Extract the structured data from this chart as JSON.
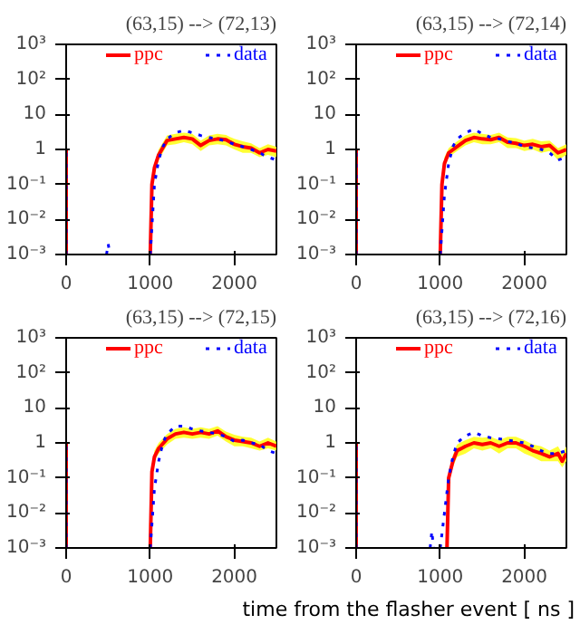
{
  "chart_data": [
    {
      "type": "line",
      "title": "(63,15) --> (72,13)",
      "ylim": [
        0.001,
        1000
      ],
      "xlim": [
        0,
        2500
      ],
      "log": "y",
      "legend": "top",
      "grid": false,
      "xticks": [
        0,
        1000,
        2000
      ],
      "yticks": [
        {
          "value": 0.001,
          "label": "10⁻³"
        },
        {
          "value": 0.01,
          "label": "10⁻²"
        },
        {
          "value": 0.1,
          "label": "10⁻¹"
        },
        1,
        10,
        {
          "value": 100,
          "label": "10²"
        },
        {
          "value": 1000,
          "label": "10³"
        }
      ],
      "series": [
        {
          "name": "ppc",
          "color": "#ff0000",
          "line_style": "solid",
          "x": [
            0,
            0,
            20,
            1000,
            1020,
            1050,
            1100,
            1200,
            1300,
            1400,
            1500,
            1600,
            1700,
            1800,
            1900,
            2000,
            2100,
            2200,
            2300,
            2400,
            2500
          ],
          "values": [
            0.001,
            1,
            null,
            0.001,
            0.1,
            0.3,
            0.7,
            1.8,
            2,
            2.2,
            2,
            1.3,
            1.8,
            2,
            1.9,
            1.4,
            1.2,
            1.1,
            0.8,
            1,
            0.9
          ],
          "lower": [
            null,
            null,
            null,
            null,
            0.07,
            0.2,
            0.5,
            1.3,
            1.4,
            1.6,
            1.4,
            0.9,
            1.3,
            1.4,
            1.3,
            1,
            0.8,
            0.8,
            0.6,
            0.7,
            0.6
          ],
          "upper": [
            null,
            null,
            null,
            null,
            0.14,
            0.4,
            1,
            2.5,
            2.8,
            3,
            2.8,
            1.8,
            2.5,
            2.8,
            2.6,
            2,
            1.7,
            1.5,
            1.1,
            1.4,
            1.2
          ]
        },
        {
          "name": "data",
          "color": "#0000ff",
          "line_style": "dotted",
          "x": [
            0,
            0,
            20,
            480,
            500,
            520,
            540,
            1000,
            1050,
            1100,
            1150,
            1200,
            1300,
            1400,
            1500,
            1600,
            1700,
            1800,
            1900,
            2000,
            2100,
            2200,
            2300,
            2400,
            2500
          ],
          "values": [
            0.001,
            1,
            null,
            0.001,
            0.002,
            0.001,
            null,
            0.001,
            0.1,
            0.5,
            1.2,
            2,
            3,
            3.5,
            3,
            2.5,
            2.2,
            2,
            1.7,
            1.4,
            1.2,
            1,
            0.8,
            0.6,
            0.5
          ]
        }
      ]
    },
    {
      "type": "line",
      "title": "(63,15) --> (72,14)",
      "ylim": [
        0.001,
        1000
      ],
      "xlim": [
        0,
        2500
      ],
      "log": "y",
      "legend": "top",
      "grid": false,
      "xticks": [
        0,
        1000,
        2000
      ],
      "yticks": [
        {
          "value": 0.001,
          "label": "10⁻³"
        },
        {
          "value": 0.01,
          "label": "10⁻²"
        },
        {
          "value": 0.1,
          "label": "10⁻¹"
        },
        1,
        10,
        {
          "value": 100,
          "label": "10²"
        },
        {
          "value": 1000,
          "label": "10³"
        }
      ],
      "series": [
        {
          "name": "ppc",
          "color": "#ff0000",
          "line_style": "solid",
          "x": [
            0,
            0,
            20,
            1000,
            1020,
            1050,
            1100,
            1200,
            1300,
            1400,
            1500,
            1600,
            1700,
            1800,
            1900,
            2000,
            2100,
            2200,
            2300,
            2400,
            2500
          ],
          "values": [
            0.001,
            1,
            null,
            0.001,
            0.1,
            0.4,
            0.8,
            1.2,
            1.8,
            2.2,
            2,
            1.9,
            2.2,
            1.6,
            1.5,
            1.3,
            1.4,
            1.2,
            1.3,
            0.8,
            1
          ],
          "lower": [
            null,
            null,
            null,
            null,
            0.07,
            0.3,
            0.6,
            0.9,
            1.3,
            1.6,
            1.4,
            1.4,
            1.6,
            1.1,
            1.1,
            0.9,
            1,
            0.8,
            0.9,
            0.5,
            0.7
          ],
          "upper": [
            null,
            null,
            null,
            null,
            0.14,
            0.6,
            1.1,
            1.7,
            2.5,
            3,
            2.8,
            2.6,
            3,
            2.2,
            2.1,
            1.8,
            2,
            1.7,
            1.8,
            1.1,
            1.4
          ]
        },
        {
          "name": "data",
          "color": "#0000ff",
          "line_style": "dotted",
          "x": [
            0,
            0,
            20,
            1000,
            1050,
            1100,
            1150,
            1200,
            1300,
            1400,
            1500,
            1600,
            1700,
            1800,
            1900,
            2000,
            2100,
            2200,
            2300,
            2400,
            2500
          ],
          "values": [
            0.001,
            1,
            null,
            0.001,
            0.05,
            0.4,
            1.2,
            2,
            3,
            3.8,
            2.8,
            2.2,
            2,
            1.7,
            1.5,
            1.2,
            1.1,
            1,
            0.8,
            0.5,
            0.6
          ]
        }
      ]
    },
    {
      "type": "line",
      "title": "(63,15) --> (72,15)",
      "ylim": [
        0.001,
        1000
      ],
      "xlim": [
        0,
        2500
      ],
      "log": "y",
      "legend": "top",
      "grid": false,
      "xticks": [
        0,
        1000,
        2000
      ],
      "yticks": [
        {
          "value": 0.001,
          "label": "10⁻³"
        },
        {
          "value": 0.01,
          "label": "10⁻²"
        },
        {
          "value": 0.1,
          "label": "10⁻¹"
        },
        1,
        10,
        {
          "value": 100,
          "label": "10²"
        },
        {
          "value": 1000,
          "label": "10³"
        }
      ],
      "series": [
        {
          "name": "ppc",
          "color": "#ff0000",
          "line_style": "solid",
          "x": [
            0,
            0,
            20,
            1000,
            1020,
            1050,
            1100,
            1200,
            1300,
            1400,
            1500,
            1600,
            1700,
            1800,
            1900,
            2000,
            2100,
            2200,
            2300,
            2400,
            2500
          ],
          "values": [
            0.001,
            1,
            null,
            0.001,
            0.15,
            0.4,
            0.7,
            1.3,
            1.8,
            2,
            1.8,
            2,
            1.8,
            2.2,
            1.5,
            1.2,
            1.1,
            1,
            0.8,
            1,
            0.8
          ],
          "lower": [
            null,
            null,
            null,
            null,
            0.1,
            0.3,
            0.5,
            0.9,
            1.3,
            1.4,
            1.3,
            1.4,
            1.3,
            1.6,
            1.1,
            0.8,
            0.8,
            0.7,
            0.6,
            0.7,
            0.6
          ],
          "upper": [
            null,
            null,
            null,
            null,
            0.2,
            0.6,
            1,
            1.8,
            2.5,
            2.8,
            2.5,
            2.8,
            2.5,
            3,
            2.1,
            1.7,
            1.5,
            1.4,
            1.1,
            1.4,
            1.1
          ]
        },
        {
          "name": "data",
          "color": "#0000ff",
          "line_style": "dotted",
          "x": [
            0,
            0,
            20,
            1000,
            1050,
            1100,
            1150,
            1200,
            1300,
            1400,
            1500,
            1600,
            1700,
            1800,
            1900,
            2000,
            2100,
            2200,
            2300,
            2400,
            2500
          ],
          "values": [
            0.001,
            1,
            null,
            0.001,
            0.05,
            0.3,
            1,
            1.8,
            3,
            3,
            2.5,
            2.2,
            2,
            1.8,
            1.5,
            1.1,
            1.2,
            1,
            0.9,
            0.6,
            0.5
          ]
        }
      ]
    },
    {
      "type": "line",
      "title": "(63,15) --> (72,16)",
      "xlabel": "time from the flasher event [ ns ]",
      "ylim": [
        0.001,
        1000
      ],
      "xlim": [
        0,
        2500
      ],
      "log": "y",
      "legend": "top",
      "grid": false,
      "xticks": [
        0,
        1000,
        2000
      ],
      "yticks": [
        {
          "value": 0.001,
          "label": "10⁻³"
        },
        {
          "value": 0.01,
          "label": "10⁻²"
        },
        {
          "value": 0.1,
          "label": "10⁻¹"
        },
        1,
        10,
        {
          "value": 100,
          "label": "10²"
        },
        {
          "value": 1000,
          "label": "10³"
        }
      ],
      "series": [
        {
          "name": "ppc",
          "color": "#ff0000",
          "line_style": "solid",
          "x": [
            0,
            0,
            20,
            1080,
            1100,
            1150,
            1200,
            1300,
            1400,
            1500,
            1600,
            1700,
            1800,
            1900,
            2000,
            2100,
            2200,
            2300,
            2400,
            2450,
            2500
          ],
          "values": [
            0.001,
            1,
            null,
            0.001,
            0.1,
            0.3,
            0.6,
            0.8,
            1,
            0.9,
            1,
            0.8,
            1,
            1,
            0.8,
            0.6,
            0.5,
            0.4,
            0.5,
            0.3,
            0.5
          ],
          "lower": [
            null,
            null,
            null,
            null,
            0.07,
            0.2,
            0.4,
            0.5,
            0.7,
            0.6,
            0.7,
            0.5,
            0.7,
            0.7,
            0.5,
            0.4,
            0.3,
            0.3,
            0.3,
            0.2,
            0.3
          ],
          "upper": [
            null,
            null,
            null,
            null,
            0.14,
            0.45,
            0.9,
            1.2,
            1.5,
            1.4,
            1.5,
            1.2,
            1.5,
            1.5,
            1.2,
            0.9,
            0.8,
            0.6,
            0.8,
            0.5,
            0.8
          ]
        },
        {
          "name": "data",
          "color": "#0000ff",
          "line_style": "dotted",
          "x": [
            0,
            0,
            20,
            880,
            900,
            920,
            940,
            1000,
            1050,
            1100,
            1150,
            1200,
            1300,
            1400,
            1500,
            1600,
            1700,
            1800,
            1900,
            2000,
            2100,
            2200,
            2300,
            2400,
            2500
          ],
          "values": [
            0.001,
            1,
            null,
            0.001,
            0.003,
            0.001,
            null,
            0.001,
            0.01,
            0.1,
            0.4,
            1,
            1.6,
            2,
            1.6,
            1.4,
            1.3,
            1.2,
            1.1,
            1,
            0.8,
            0.6,
            0.5,
            0.5,
            0.6
          ]
        }
      ]
    }
  ]
}
